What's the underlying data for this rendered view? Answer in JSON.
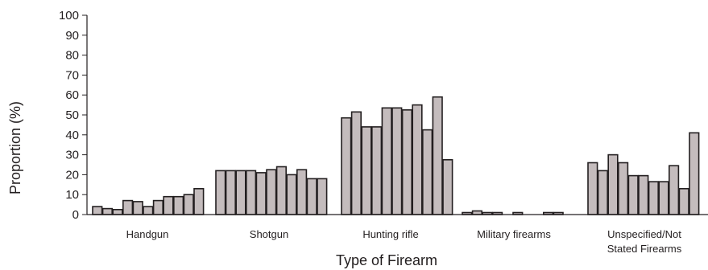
{
  "chart_data": {
    "type": "bar",
    "xlabel": "Type of Firearm",
    "ylabel": "Proportion (%)",
    "ylim": [
      0,
      100
    ],
    "yticks": [
      "0",
      "10",
      "20",
      "30",
      "40",
      "50",
      "60",
      "70",
      "80",
      "90",
      "100"
    ],
    "grid": false,
    "legend": "none",
    "colors": {
      "bar_fill": "#c4bcbd",
      "bar_stroke": "#231f20",
      "axis": "#231f20"
    },
    "groups": [
      {
        "label": [
          "Handgun"
        ],
        "values": [
          4,
          3,
          2.5,
          7,
          6.5,
          4,
          7,
          9,
          9,
          10,
          13
        ]
      },
      {
        "label": [
          "Shotgun"
        ],
        "values": [
          22,
          22,
          22,
          22,
          21,
          22.5,
          24,
          20,
          22.5,
          18,
          18
        ]
      },
      {
        "label": [
          "Hunting rifle"
        ],
        "values": [
          48.5,
          51.5,
          44,
          44,
          53.5,
          53.5,
          52.5,
          55,
          42.5,
          59,
          27.5
        ]
      },
      {
        "label": [
          "Military firearms"
        ],
        "values": [
          1,
          1.8,
          1,
          1,
          0,
          1,
          0,
          0,
          1,
          1,
          0
        ]
      },
      {
        "label": [
          "Unspecified/Not",
          "Stated Firearms"
        ],
        "values": [
          26,
          22,
          30,
          26,
          19.5,
          19.5,
          16.5,
          16.5,
          24.5,
          13,
          41
        ]
      }
    ]
  }
}
